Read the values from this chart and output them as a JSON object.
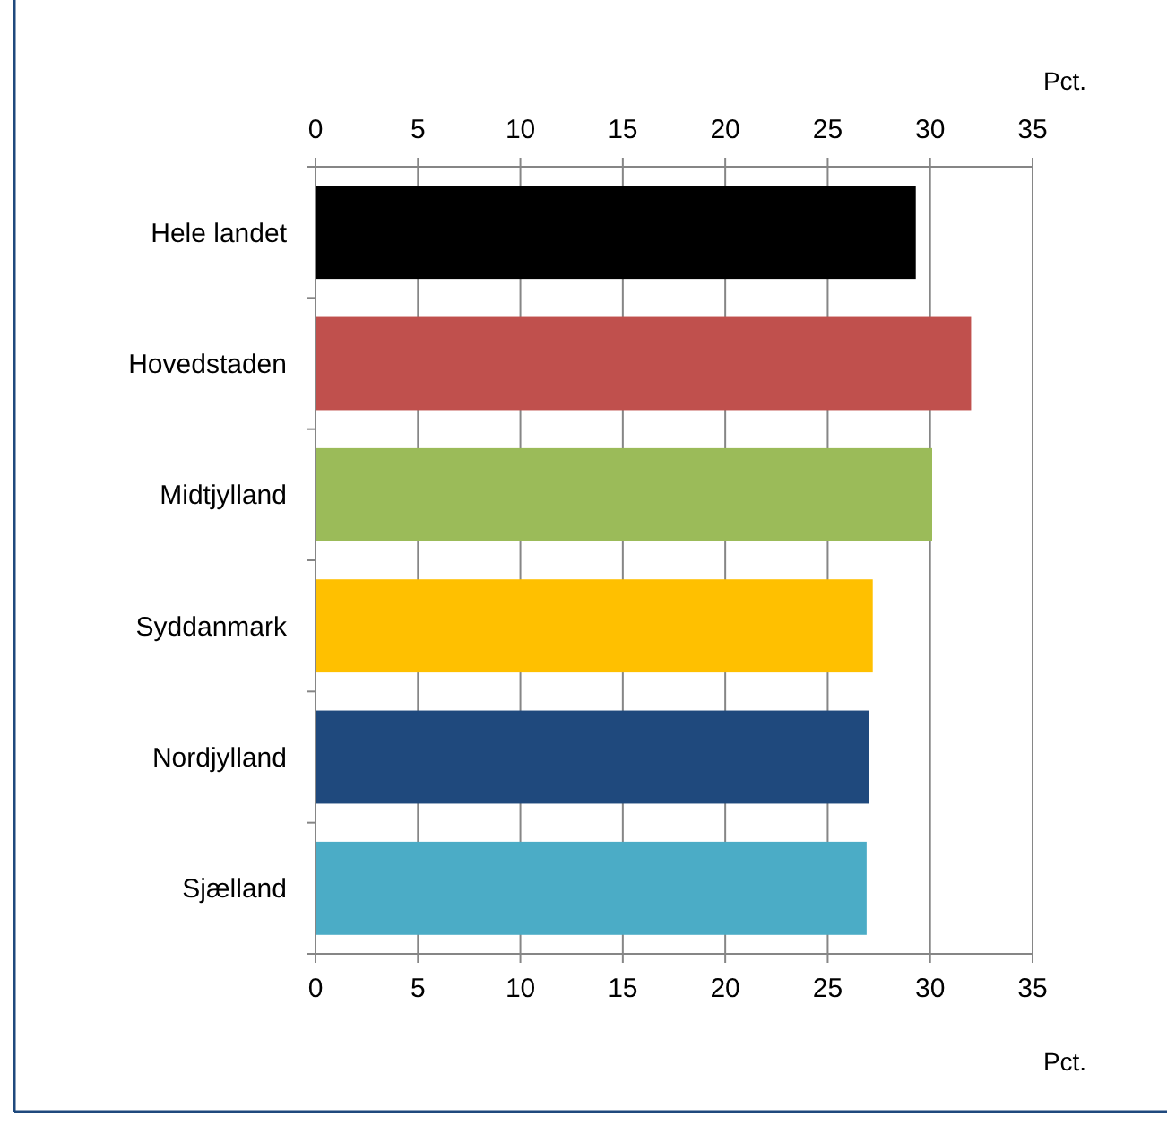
{
  "chart_data": {
    "type": "bar",
    "orientation": "horizontal",
    "categories": [
      "Hele landet",
      "Hovedstaden",
      "Midtjylland",
      "Syddanmark",
      "Nordjylland",
      "Sjælland"
    ],
    "values": [
      29.3,
      32.0,
      30.1,
      27.2,
      27.0,
      26.9
    ],
    "colors": [
      "#000000",
      "#c0504d",
      "#9bbb59",
      "#ffc000",
      "#1f497d",
      "#4bacc6"
    ],
    "xlim": [
      0,
      35
    ],
    "xticks": [
      0,
      5,
      10,
      15,
      20,
      25,
      30,
      35
    ],
    "xlabel": "Pct.",
    "x2lim": [
      0,
      35
    ],
    "x2ticks": [
      0,
      5,
      10,
      15,
      20,
      25,
      30,
      35
    ],
    "x2label": "Pct.",
    "grid": "x"
  }
}
